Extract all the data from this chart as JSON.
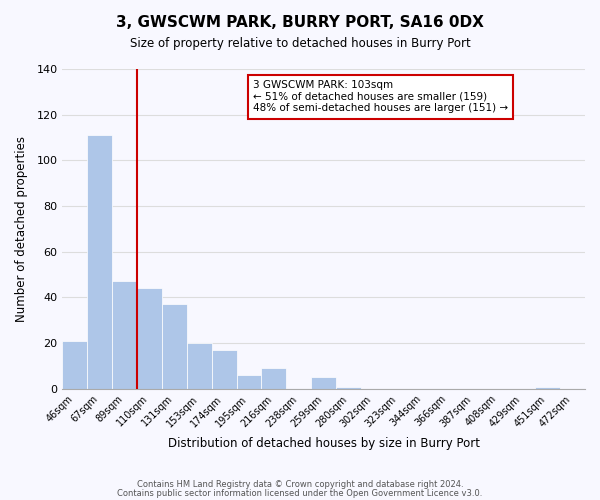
{
  "title": "3, GWSCWM PARK, BURRY PORT, SA16 0DX",
  "subtitle": "Size of property relative to detached houses in Burry Port",
  "xlabel": "Distribution of detached houses by size in Burry Port",
  "ylabel": "Number of detached properties",
  "bar_color": "#aec6e8",
  "vline_color": "#cc0000",
  "bin_labels": [
    "46sqm",
    "67sqm",
    "89sqm",
    "110sqm",
    "131sqm",
    "153sqm",
    "174sqm",
    "195sqm",
    "216sqm",
    "238sqm",
    "259sqm",
    "280sqm",
    "302sqm",
    "323sqm",
    "344sqm",
    "366sqm",
    "387sqm",
    "408sqm",
    "429sqm",
    "451sqm",
    "472sqm"
  ],
  "counts": [
    21,
    111,
    47,
    44,
    37,
    20,
    17,
    6,
    9,
    0,
    5,
    1,
    0,
    0,
    0,
    0,
    0,
    0,
    0,
    1,
    0
  ],
  "ylim": [
    0,
    140
  ],
  "yticks": [
    0,
    20,
    40,
    60,
    80,
    100,
    120,
    140
  ],
  "vline_bar_index": 3,
  "annotation_lines": [
    "3 GWSCWM PARK: 103sqm",
    "← 51% of detached houses are smaller (159)",
    "48% of semi-detached houses are larger (151) →"
  ],
  "footer_lines": [
    "Contains HM Land Registry data © Crown copyright and database right 2024.",
    "Contains public sector information licensed under the Open Government Licence v3.0."
  ],
  "grid_color": "#dddddd",
  "background_color": "#f8f8ff"
}
